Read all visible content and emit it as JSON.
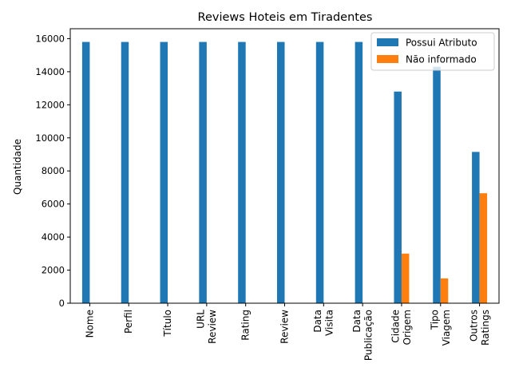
{
  "chart_data": {
    "type": "bar",
    "title": "Reviews Hoteis em Tiradentes",
    "xlabel": "",
    "ylabel": "Quantidade",
    "ylim": [
      0,
      16600
    ],
    "yticks": [
      0,
      2000,
      4000,
      6000,
      8000,
      10000,
      12000,
      14000,
      16000
    ],
    "grid": false,
    "legend_position": "top-right",
    "categories": [
      [
        "Nome"
      ],
      [
        "Perfil"
      ],
      [
        "Título"
      ],
      [
        "URL",
        "Review"
      ],
      [
        "Rating"
      ],
      [
        "Review"
      ],
      [
        "Data",
        "Visita"
      ],
      [
        "Data",
        "Publicação"
      ],
      [
        "Cidade",
        "Origem"
      ],
      [
        "Tipo",
        "Viagem"
      ],
      [
        "Outros",
        "Ratings"
      ]
    ],
    "series": [
      {
        "name": "Possui Atributo",
        "color": "#1f77b4",
        "values": [
          15800,
          15800,
          15800,
          15800,
          15800,
          15800,
          15800,
          15800,
          12800,
          14300,
          9150
        ]
      },
      {
        "name": "Não informado",
        "color": "#ff7f0e",
        "values": [
          0,
          0,
          0,
          0,
          0,
          0,
          0,
          0,
          3000,
          1500,
          6650
        ]
      }
    ]
  }
}
